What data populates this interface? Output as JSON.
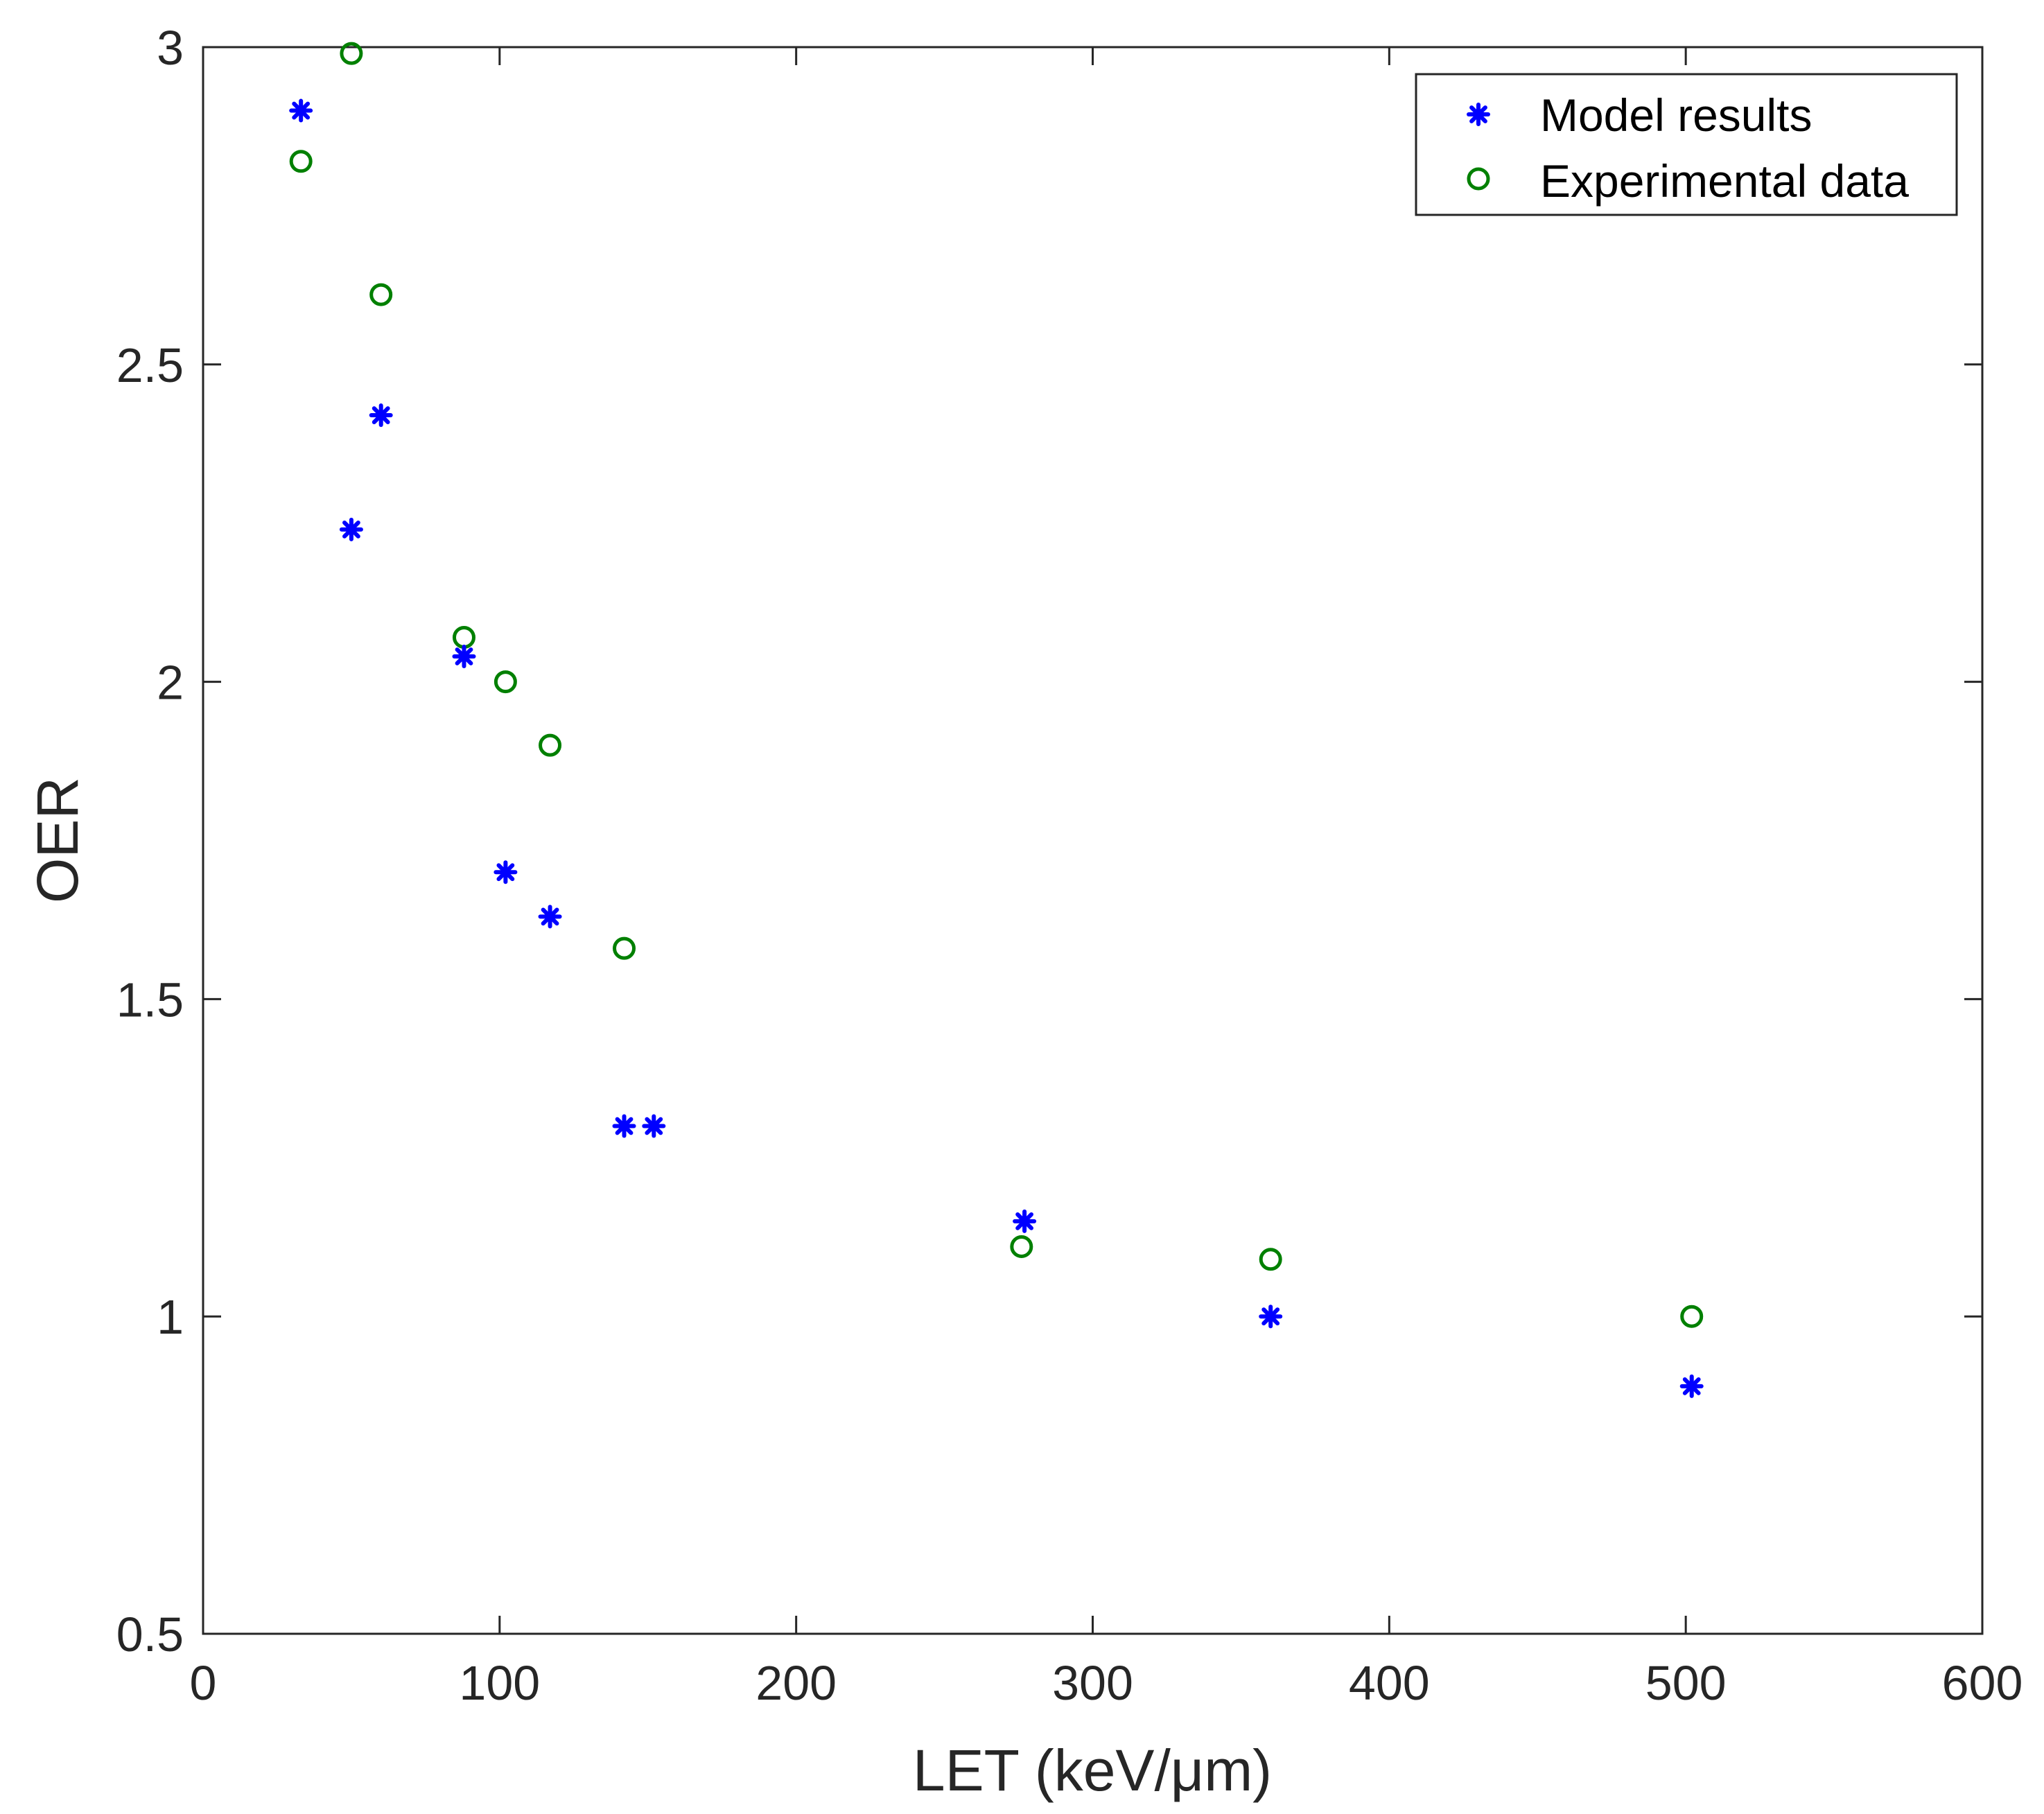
{
  "chart_data": {
    "type": "scatter",
    "title": "",
    "xlabel": "LET (keV/μm)",
    "ylabel": "OER",
    "xlim": [
      0,
      600
    ],
    "ylim": [
      0.5,
      3
    ],
    "xticks": [
      0,
      100,
      200,
      300,
      400,
      500,
      600
    ],
    "yticks": [
      0.5,
      1,
      1.5,
      2,
      2.5,
      3
    ],
    "xtick_labels": [
      "0",
      "100",
      "200",
      "300",
      "400",
      "500",
      "600"
    ],
    "ytick_labels": [
      "0.5",
      "1",
      "1.5",
      "2",
      "2.5",
      "3"
    ],
    "grid": false,
    "legend_position": "top-right",
    "series": [
      {
        "name": "Model results",
        "marker": "asterisk",
        "color": "#0000ff",
        "points": [
          {
            "x": 33,
            "y": 2.9
          },
          {
            "x": 50,
            "y": 2.24
          },
          {
            "x": 60,
            "y": 2.42
          },
          {
            "x": 88,
            "y": 2.04
          },
          {
            "x": 102,
            "y": 1.7
          },
          {
            "x": 117,
            "y": 1.63
          },
          {
            "x": 142,
            "y": 1.3
          },
          {
            "x": 152,
            "y": 1.3
          },
          {
            "x": 277,
            "y": 1.15
          },
          {
            "x": 360,
            "y": 1.0
          },
          {
            "x": 502,
            "y": 0.89
          }
        ]
      },
      {
        "name": "Experimental data",
        "marker": "circle",
        "color": "#008000",
        "points": [
          {
            "x": 33,
            "y": 2.82
          },
          {
            "x": 50,
            "y": 2.99
          },
          {
            "x": 60,
            "y": 2.61
          },
          {
            "x": 88,
            "y": 2.07
          },
          {
            "x": 102,
            "y": 2.0
          },
          {
            "x": 117,
            "y": 1.9
          },
          {
            "x": 142,
            "y": 1.58
          },
          {
            "x": 276,
            "y": 1.11
          },
          {
            "x": 360,
            "y": 1.09
          },
          {
            "x": 502,
            "y": 1.0
          }
        ]
      }
    ]
  }
}
